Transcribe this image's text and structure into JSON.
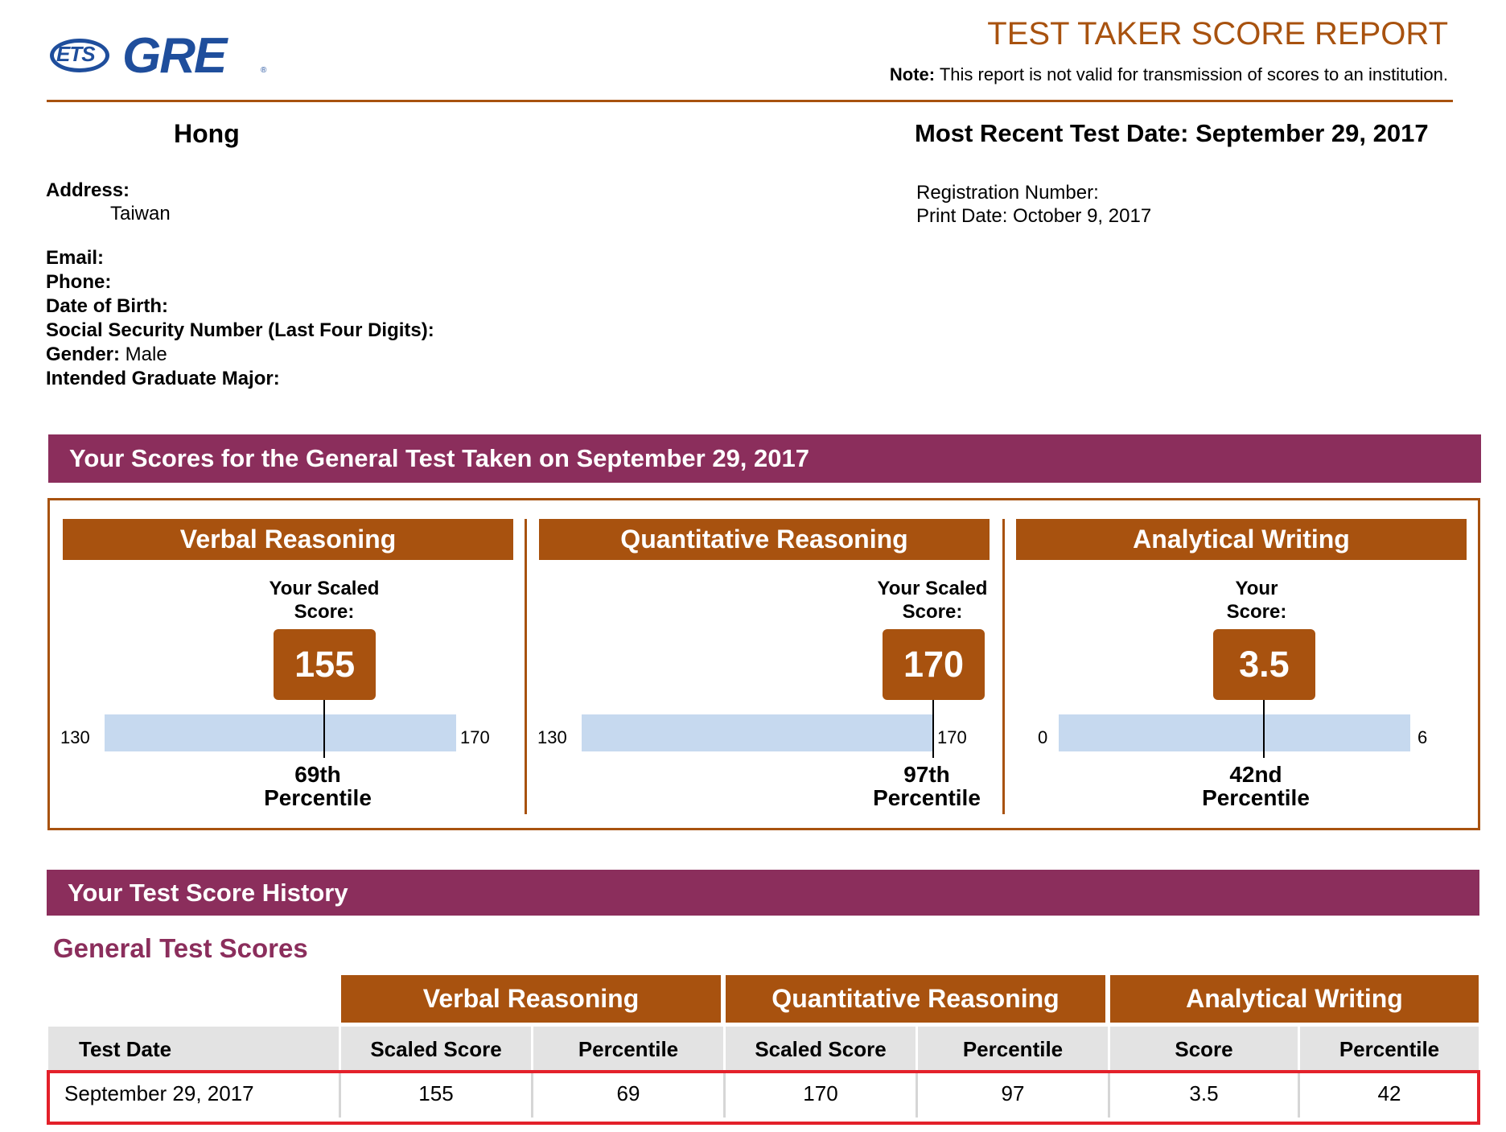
{
  "header": {
    "logo_ets": "ETS",
    "logo_gre": "GRE",
    "logo_mark": "®",
    "title": "TEST TAKER SCORE REPORT",
    "note_label": "Note:",
    "note_text": " This report is not valid for transmission of scores to an institution."
  },
  "personal": {
    "name": "Hong",
    "recent_date_label": "Most Recent Test Date: September 29, 2017",
    "address_label": "Address:",
    "address_value": "Taiwan",
    "email_label": "Email:",
    "phone_label": "Phone:",
    "dob_label": "Date of Birth:",
    "ssn_label": "Social Security Number (Last Four Digits):",
    "gender_label": "Gender:",
    "gender_value": " Male",
    "major_label": "Intended Graduate Major:",
    "registration_label": "Registration Number:",
    "print_date": "Print Date: October 9, 2017"
  },
  "scores_section": {
    "title": "Your Scores for the General Test Taken on September 29, 2017",
    "sections": [
      {
        "name": "Verbal Reasoning",
        "score_label_line1": "Your Scaled",
        "score_label_line2": "Score:",
        "score": "155",
        "min": "130",
        "max": "170",
        "score_value": 155,
        "range": [
          130,
          170
        ],
        "percentile_line1": "69th",
        "percentile_line2": "Percentile"
      },
      {
        "name": "Quantitative Reasoning",
        "score_label_line1": "Your Scaled",
        "score_label_line2": "Score:",
        "score": "170",
        "min": "130",
        "max": "170",
        "score_value": 170,
        "range": [
          130,
          170
        ],
        "percentile_line1": "97th",
        "percentile_line2": "Percentile"
      },
      {
        "name": "Analytical Writing",
        "score_label_line1": "Your",
        "score_label_line2": "Score:",
        "score": "3.5",
        "min": "0",
        "max": "6",
        "score_value": 3.5,
        "range": [
          0,
          6
        ],
        "percentile_line1": "42nd",
        "percentile_line2": "Percentile"
      }
    ]
  },
  "history": {
    "title": "Your Test Score History",
    "subtitle": "General Test Scores",
    "group_headers": [
      "Verbal Reasoning",
      "Quantitative Reasoning",
      "Analytical Writing"
    ],
    "columns": [
      "Test Date",
      "Scaled Score",
      "Percentile",
      "Scaled Score",
      "Percentile",
      "Score",
      "Percentile"
    ],
    "rows": [
      [
        "September 29, 2017",
        "155",
        "69",
        "170",
        "97",
        "3.5",
        "42"
      ]
    ]
  }
}
